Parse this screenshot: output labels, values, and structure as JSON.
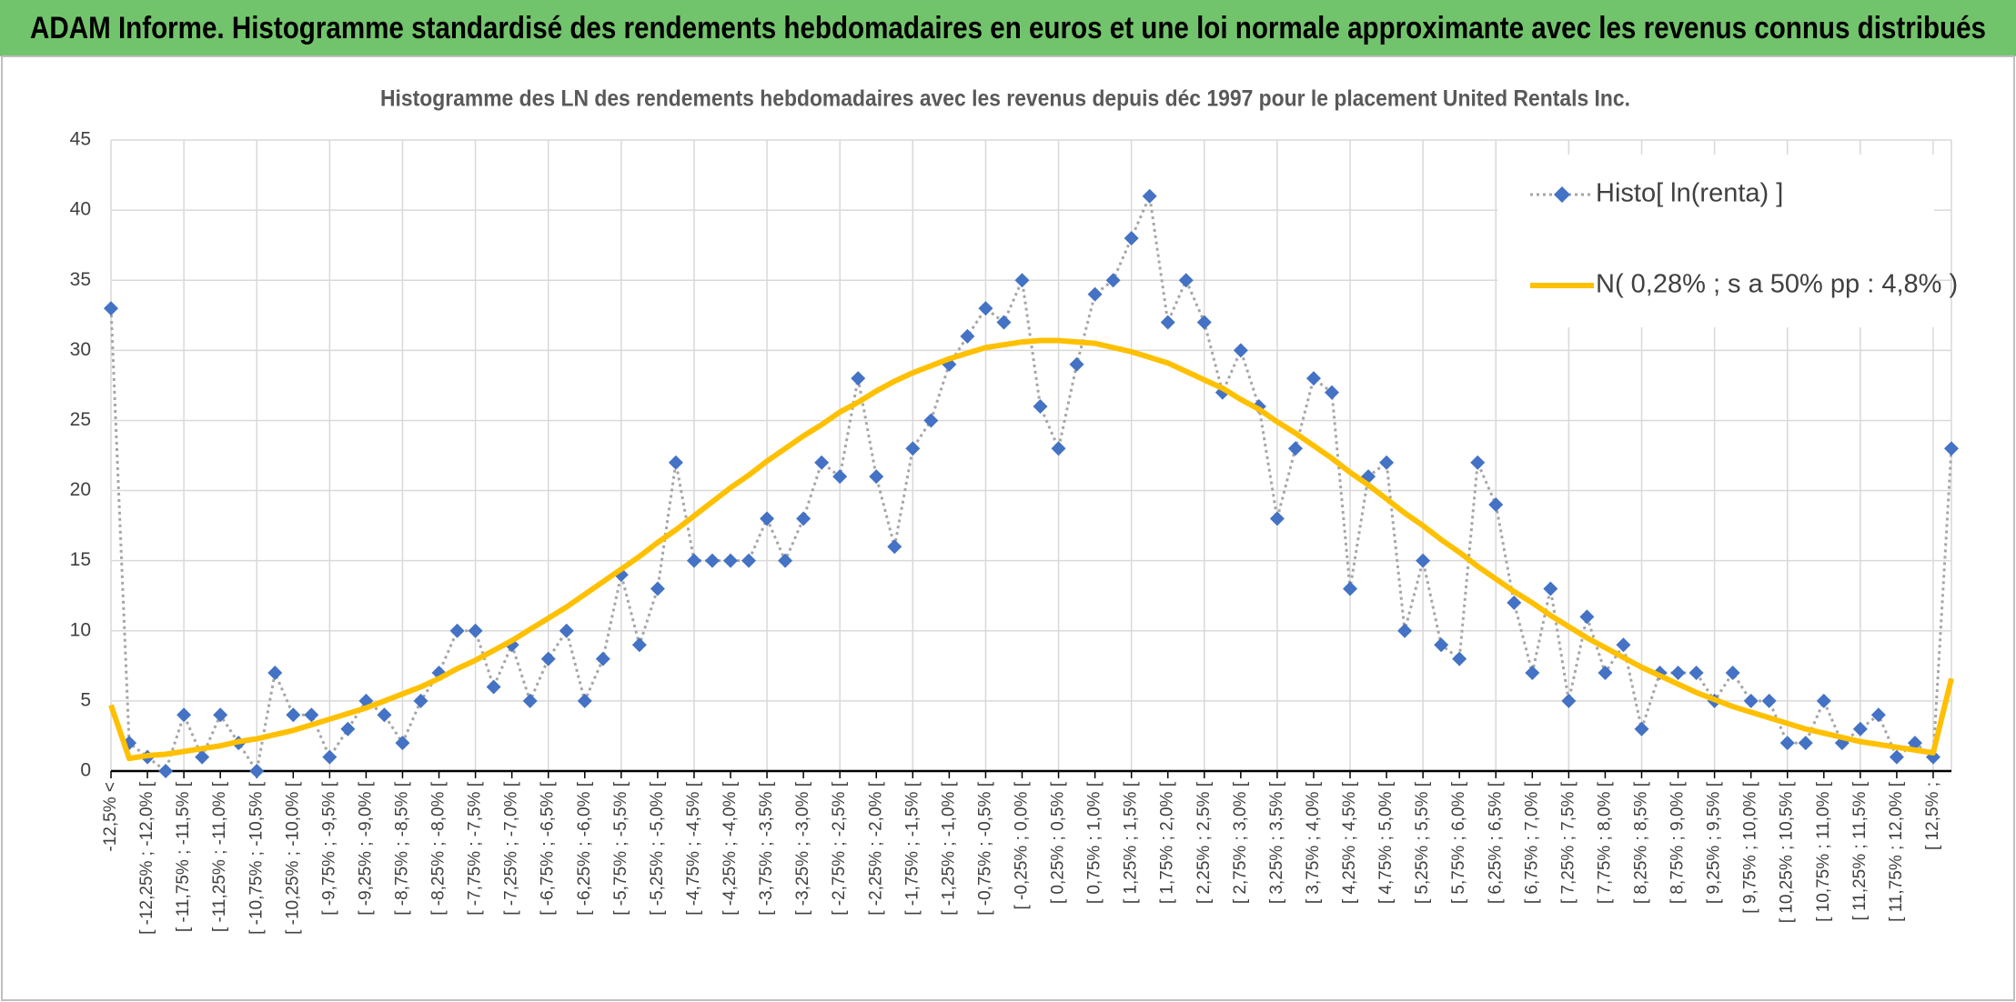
{
  "header": {
    "title": "ADAM Informe. Histogramme standardisé des rendements hebdomadaires en euros et une loi normale approximante avec les revenus connus distribués"
  },
  "chart_data": {
    "type": "line",
    "title": "Histogramme des LN des rendements hebdomadaires avec les revenus depuis déc 1997 pour le placement United Rentals Inc.",
    "categories": [
      "-12,5% <",
      null,
      "[ -12,25% ; -12,0% [",
      null,
      "[ -11,75% ; -11,5% [",
      null,
      "[ -11,25% ; -11,0% [",
      null,
      "[ -10,75% ; -10,5% [",
      null,
      "[ -10,25% ; -10,0% [",
      null,
      "[ -9,75% ; -9,5% [",
      null,
      "[ -9,25% ; -9,0% [",
      null,
      "[ -8,75% ; -8,5% [",
      null,
      "[ -8,25% ; -8,0% [",
      null,
      "[ -7,75% ; -7,5% [",
      null,
      "[ -7,25% ; -7,0% [",
      null,
      "[ -6,75% ; -6,5% [",
      null,
      "[ -6,25% ; -6,0% [",
      null,
      "[ -5,75% ; -5,5% [",
      null,
      "[ -5,25% ; -5,0% [",
      null,
      "[ -4,75% ; -4,5% [",
      null,
      "[ -4,25% ; -4,0% [",
      null,
      "[ -3,75% ; -3,5% [",
      null,
      "[ -3,25% ; -3,0% [",
      null,
      "[ -2,75% ; -2,5% [",
      null,
      "[ -2,25% ; -2,0% [",
      null,
      "[ -1,75% ; -1,5% [",
      null,
      "[ -1,25% ; -1,0% [",
      null,
      "[ -0,75% ; -0,5% [",
      null,
      "[ -0,25% ; 0,0% [",
      null,
      "[ 0,25% ; 0,5% [",
      null,
      "[ 0,75% ; 1,0% [",
      null,
      "[ 1,25% ; 1,5% [",
      null,
      "[ 1,75% ; 2,0% [",
      null,
      "[ 2,25% ; 2,5% [",
      null,
      "[ 2,75% ; 3,0% [",
      null,
      "[ 3,25% ; 3,5% [",
      null,
      "[ 3,75% ; 4,0% [",
      null,
      "[ 4,25% ; 4,5% [",
      null,
      "[ 4,75% ; 5,0% [",
      null,
      "[ 5,25% ; 5,5% [",
      null,
      "[ 5,75% ; 6,0% [",
      null,
      "[ 6,25% ; 6,5% [",
      null,
      "[ 6,75% ; 7,0% [",
      null,
      "[ 7,25% ; 7,5% [",
      null,
      "[ 7,75% ; 8,0% [",
      null,
      "[ 8,25% ; 8,5% [",
      null,
      "[ 8,75% ; 9,0% [",
      null,
      "[ 9,25% ; 9,5% [",
      null,
      "[ 9,75% ; 10,0% [",
      null,
      "[ 10,25% ; 10,5% [",
      null,
      "[ 10,75% ; 11,0% [",
      null,
      "[ 11,25% ; 11,5% [",
      null,
      "[ 11,75% ; 12,0% [",
      null,
      "[ 12,5% ;",
      null
    ],
    "series": [
      {
        "name": "Histo[ ln(renta) ]",
        "color": "#4472c4",
        "line_color": "#a6a6a6",
        "marker": "diamond",
        "line_style": "dotted",
        "values": [
          33,
          2,
          1,
          0,
          4,
          1,
          4,
          2,
          0,
          7,
          4,
          4,
          1,
          3,
          5,
          4,
          2,
          5,
          7,
          10,
          10,
          6,
          9,
          5,
          8,
          10,
          5,
          8,
          14,
          9,
          13,
          22,
          15,
          15,
          15,
          15,
          18,
          15,
          18,
          22,
          21,
          28,
          21,
          16,
          23,
          25,
          29,
          31,
          33,
          32,
          35,
          26,
          23,
          29,
          34,
          35,
          38,
          41,
          32,
          35,
          32,
          27,
          30,
          26,
          18,
          23,
          28,
          27,
          13,
          21,
          22,
          10,
          15,
          9,
          8,
          22,
          19,
          12,
          7,
          13,
          5,
          11,
          7,
          9,
          3,
          7,
          7,
          7,
          5,
          7,
          5,
          5,
          2,
          2,
          5,
          2,
          3,
          4,
          1,
          2,
          1,
          23
        ]
      },
      {
        "name": "N( 0,28% ; s a 50% pp : 4,8% )",
        "color": "#ffc000",
        "marker": "none",
        "line_style": "solid",
        "values": [
          4.7,
          0.9,
          1.1,
          1.2,
          1.4,
          1.6,
          1.8,
          2.1,
          2.3,
          2.6,
          2.9,
          3.3,
          3.7,
          4.1,
          4.5,
          5.0,
          5.5,
          6.0,
          6.6,
          7.3,
          7.9,
          8.6,
          9.3,
          10.1,
          10.9,
          11.7,
          12.6,
          13.5,
          14.4,
          15.3,
          16.3,
          17.2,
          18.2,
          19.2,
          20.2,
          21.1,
          22.1,
          23.0,
          23.9,
          24.7,
          25.6,
          26.3,
          27.1,
          27.8,
          28.4,
          28.9,
          29.4,
          29.8,
          30.2,
          30.4,
          30.6,
          30.7,
          30.7,
          30.6,
          30.5,
          30.2,
          29.9,
          29.5,
          29.1,
          28.5,
          27.9,
          27.3,
          26.5,
          25.8,
          24.9,
          24.1,
          23.2,
          22.3,
          21.3,
          20.4,
          19.4,
          18.4,
          17.5,
          16.5,
          15.6,
          14.6,
          13.7,
          12.8,
          12.0,
          11.1,
          10.3,
          9.5,
          8.8,
          8.1,
          7.4,
          6.8,
          6.2,
          5.6,
          5.1,
          4.6,
          4.2,
          3.8,
          3.4,
          3.0,
          2.7,
          2.4,
          2.1,
          1.9,
          1.7,
          1.5,
          1.3,
          6.6
        ]
      }
    ],
    "ylim": [
      0,
      45
    ],
    "yticks": [
      0,
      5,
      10,
      15,
      20,
      25,
      30,
      35,
      40,
      45
    ],
    "grid": true,
    "legend": "top-right"
  }
}
